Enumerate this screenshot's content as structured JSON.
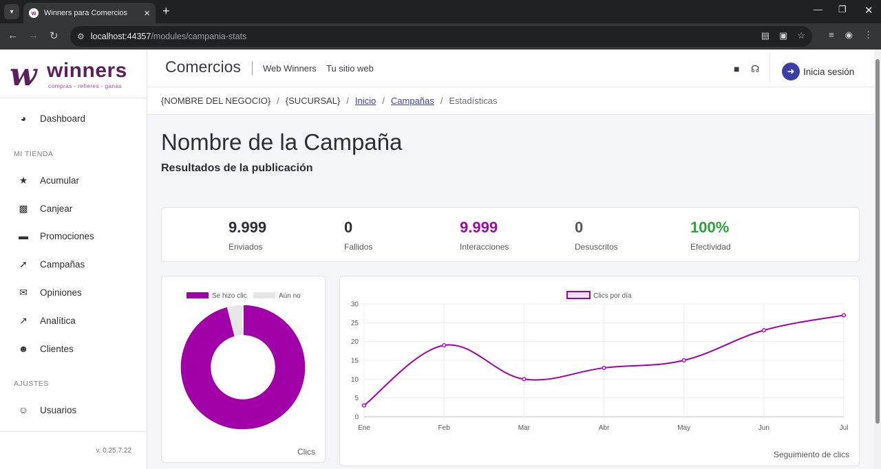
{
  "browser": {
    "tab_title": "Winners para Comercios",
    "url_host": "localhost:44357",
    "url_path": "/modules/campania-stats"
  },
  "logo": {
    "text": "winners",
    "tagline": "compras - refieres - ganas"
  },
  "sidebar": {
    "dashboard": "Dashboard",
    "section_store": "MI TIENDA",
    "items": [
      "Acumular",
      "Canjear",
      "Promociones",
      "Campañas",
      "Opiniones",
      "Analítica",
      "Clientes"
    ],
    "section_settings": "AJUSTES",
    "users": "Usuarios",
    "version": "v. 0.25.7.22"
  },
  "header": {
    "brand": "Comercios",
    "link_web": "Web Winners",
    "link_site": "Tu sitio web",
    "login": "Inicia sesión"
  },
  "breadcrumb": {
    "business": "{NOMBRE DEL NEGOCIO}",
    "branch": "{SUCURSAL}",
    "home": "Inicio",
    "campaigns": "Campañas",
    "current": "Estadísticas"
  },
  "page": {
    "title": "Nombre de la Campaña",
    "subtitle": "Resultados de la publicación"
  },
  "stats": [
    {
      "value": "9.999",
      "label": "Enviados",
      "color": "#2d2d35"
    },
    {
      "value": "0",
      "label": "Fallidos",
      "color": "#2d2d35"
    },
    {
      "value": "9.999",
      "label": "Interacciones",
      "color": "#9b0ba6"
    },
    {
      "value": "0",
      "label": "Desuscritos",
      "color": "#55555f"
    },
    {
      "value": "100%",
      "label": "Efectividad",
      "color": "#2e9e3a"
    }
  ],
  "colors": {
    "accent": "#a100a8",
    "muted": "#e6e6e6",
    "login_bg": "#3b3fa3"
  },
  "chart_data": [
    {
      "type": "pie",
      "labels": [
        "Se hizo clic",
        "Aún no"
      ],
      "values": [
        96,
        4
      ],
      "colors": [
        "#a100a8",
        "#e6e6e6"
      ],
      "legend": "top",
      "footer": "Clics"
    },
    {
      "type": "line",
      "categories": [
        "Ene",
        "Feb",
        "Mar",
        "Abr",
        "May",
        "Jun",
        "Jul"
      ],
      "series": [
        {
          "name": "Clics por día",
          "values": [
            3,
            19,
            10,
            13,
            15,
            23,
            27
          ]
        }
      ],
      "ylim": [
        0,
        30
      ],
      "yticks": [
        0,
        5,
        10,
        15,
        20,
        25,
        30
      ],
      "grid": true,
      "legend": "top",
      "footer": "Seguimiento de clics"
    }
  ]
}
